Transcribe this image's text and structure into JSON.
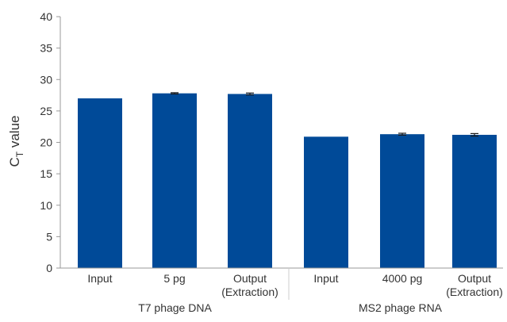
{
  "chart_data": {
    "type": "bar",
    "ylabel_main": "C",
    "ylabel_sub": "T",
    "ylabel_rest": " value",
    "ylim": [
      0,
      40
    ],
    "yticks": [
      0,
      5,
      10,
      15,
      20,
      25,
      30,
      35,
      40
    ],
    "grid": false,
    "color": "#004a98",
    "errorbar_color": "#1a1a1a",
    "groups": [
      {
        "label": "T7 phage DNA",
        "bars": [
          {
            "label": [
              "Input"
            ],
            "value": 27.0,
            "error": 0.0
          },
          {
            "label": [
              "5 pg"
            ],
            "value": 27.8,
            "error": 0.1
          },
          {
            "label": [
              "Output",
              "(Extraction)"
            ],
            "value": 27.7,
            "error": 0.15
          }
        ]
      },
      {
        "label": "MS2 phage RNA",
        "bars": [
          {
            "label": [
              "Input"
            ],
            "value": 20.9,
            "error": 0.0
          },
          {
            "label": [
              "4000 pg"
            ],
            "value": 21.3,
            "error": 0.15
          },
          {
            "label": [
              "Output",
              "(Extraction)"
            ],
            "value": 21.2,
            "error": 0.2
          }
        ]
      }
    ]
  }
}
